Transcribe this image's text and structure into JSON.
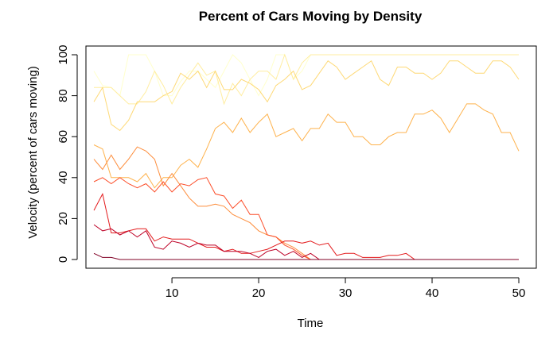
{
  "chart_data": {
    "type": "line",
    "title": "Percent of Cars Moving by Density",
    "xlabel": "Time",
    "ylabel": "Velocity (percent of cars moving)",
    "xlim": [
      1,
      50
    ],
    "ylim": [
      0,
      100
    ],
    "xticks": [
      10,
      20,
      30,
      40,
      50
    ],
    "yticks": [
      0,
      20,
      40,
      60,
      80,
      100
    ],
    "grid": false,
    "legend": "none",
    "x": [
      1,
      2,
      3,
      4,
      5,
      6,
      7,
      8,
      9,
      10,
      11,
      12,
      13,
      14,
      15,
      16,
      17,
      18,
      19,
      20,
      21,
      22,
      23,
      24,
      25,
      26,
      27,
      28,
      29,
      30,
      31,
      32,
      33,
      34,
      35,
      36,
      37,
      38,
      39,
      40,
      41,
      42,
      43,
      44,
      45,
      46,
      47,
      48,
      49,
      50
    ],
    "series": [
      {
        "color": "#ffffcc",
        "values": [
          92,
          85,
          84,
          80,
          100,
          100,
          100,
          92,
          80,
          80,
          87,
          92,
          92,
          88,
          84,
          92,
          100,
          96,
          88,
          80,
          88,
          100,
          100,
          88,
          92,
          100,
          100,
          100,
          100,
          100,
          100,
          100,
          100,
          100,
          100,
          100,
          100,
          100,
          100,
          100,
          100,
          100,
          100,
          100,
          100,
          100,
          100,
          100,
          100,
          100
        ]
      },
      {
        "color": "#ffeda0",
        "values": [
          84,
          84,
          84,
          80,
          76,
          76,
          82,
          92,
          85,
          76,
          84,
          90,
          96,
          90,
          92,
          76,
          86,
          80,
          88,
          92,
          92,
          88,
          100,
          88,
          96,
          100,
          100,
          100,
          100,
          100,
          100,
          100,
          100,
          100,
          100,
          100,
          100,
          100,
          100,
          100,
          100,
          100,
          100,
          100,
          100,
          100,
          100,
          100,
          100,
          100
        ]
      },
      {
        "color": "#fed976",
        "values": [
          77,
          84,
          66,
          63,
          68,
          77,
          77,
          77,
          80,
          82,
          91,
          88,
          92,
          84,
          92,
          83,
          83,
          88,
          86,
          83,
          77,
          85,
          88,
          92,
          83,
          85,
          91,
          97,
          94,
          88,
          91,
          94,
          97,
          88,
          85,
          94,
          94,
          91,
          91,
          88,
          91,
          97,
          97,
          94,
          91,
          91,
          97,
          97,
          94,
          88
        ]
      },
      {
        "color": "#feb24c",
        "values": [
          56,
          54,
          40,
          40,
          40,
          38,
          42,
          35,
          40,
          40,
          46,
          49,
          45,
          54,
          64,
          67,
          62,
          69,
          62,
          67,
          71,
          60,
          62,
          64,
          58,
          64,
          64,
          71,
          67,
          67,
          60,
          60,
          56,
          56,
          60,
          62,
          62,
          71,
          71,
          73,
          69,
          62,
          69,
          76,
          76,
          73,
          71,
          62,
          62,
          53
        ]
      },
      {
        "color": "#fd8d3c",
        "values": [
          49,
          44,
          51,
          44,
          49,
          55,
          53,
          49,
          36,
          42,
          36,
          30,
          26,
          26,
          27,
          26,
          22,
          20,
          18,
          14,
          12,
          11,
          8,
          6,
          3,
          0,
          0,
          0,
          0,
          0,
          0,
          0,
          0,
          0,
          0,
          0,
          0,
          0,
          0,
          0,
          0,
          0,
          0,
          0,
          0,
          0,
          0,
          0,
          0,
          0
        ]
      },
      {
        "color": "#fc4e2a",
        "values": [
          38,
          40,
          37,
          40,
          37,
          35,
          37,
          33,
          38,
          33,
          37,
          36,
          39,
          40,
          32,
          31,
          25,
          29,
          22,
          22,
          12,
          11,
          7,
          5,
          2,
          0,
          0,
          0,
          0,
          0,
          0,
          0,
          0,
          0,
          0,
          0,
          0,
          0,
          0,
          0,
          0,
          0,
          0,
          0,
          0,
          0,
          0,
          0,
          0,
          0
        ]
      },
      {
        "color": "#e31a1c",
        "values": [
          24,
          32,
          13,
          13,
          14,
          15,
          15,
          9,
          11,
          10,
          10,
          10,
          8,
          6,
          6,
          4,
          5,
          3,
          3,
          4,
          5,
          7,
          9,
          9,
          8,
          9,
          7,
          8,
          2,
          3,
          3,
          1,
          1,
          1,
          2,
          2,
          3,
          0,
          0,
          0,
          0,
          0,
          0,
          0,
          0,
          0,
          0,
          0,
          0,
          0
        ]
      },
      {
        "color": "#bd0026",
        "values": [
          17,
          14,
          15,
          12,
          14,
          11,
          14,
          6,
          5,
          9,
          8,
          6,
          8,
          7,
          7,
          4,
          4,
          4,
          3,
          1,
          4,
          5,
          2,
          4,
          1,
          3,
          0,
          0,
          0,
          0,
          0,
          0,
          0,
          0,
          0,
          0,
          0,
          0,
          0,
          0,
          0,
          0,
          0,
          0,
          0,
          0,
          0,
          0,
          0,
          0
        ]
      },
      {
        "color": "#800026",
        "values": [
          3,
          1,
          1,
          0,
          0,
          0,
          0,
          0,
          0,
          0,
          0,
          0,
          0,
          0,
          0,
          0,
          0,
          0,
          0,
          0,
          0,
          0,
          0,
          0,
          0,
          0,
          0,
          0,
          0,
          0,
          0,
          0,
          0,
          0,
          0,
          0,
          0,
          0,
          0,
          0,
          0,
          0,
          0,
          0,
          0,
          0,
          0,
          0,
          0,
          0
        ]
      }
    ]
  }
}
